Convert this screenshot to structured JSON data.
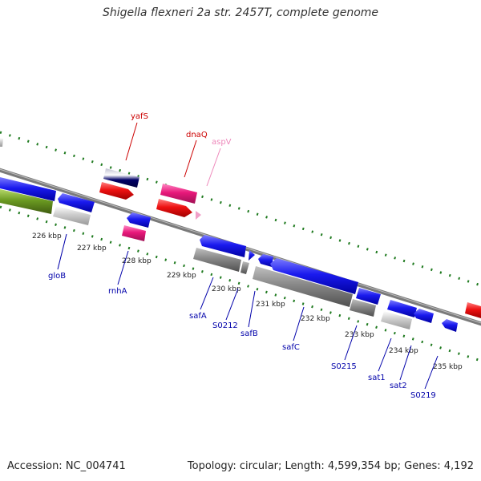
{
  "title": "Shigella flexneri 2a str. 2457T, complete genome",
  "footer": {
    "accession": "Accession: NC_004741",
    "info": "Topology: circular; Length: 4,599,354 bp; Genes: 4,192"
  },
  "colors": {
    "backbone": "#808080",
    "scale_dots": "#1f7a1f",
    "label_red": "#cc0000",
    "label_pink": "#ee88bb",
    "label_blue": "#0000aa",
    "gene_blue": "#1a1aee",
    "gene_red": "#ee1111",
    "gene_pink": "#e8187a",
    "gene_gray": "#888888",
    "gene_light": "#c8c8c8",
    "gene_navy": "#000066",
    "gene_green": "#6b9a22"
  },
  "scale": {
    "ticks": [
      "226 kbp",
      "227 kbp",
      "228 kbp",
      "229 kbp",
      "230 kbp",
      "231 kbp",
      "232 kbp",
      "233 kbp",
      "234 kbp",
      "235 kbp"
    ]
  },
  "genes": {
    "above": [
      {
        "name": "yafS",
        "color": "red"
      },
      {
        "name": "dnaQ",
        "color": "red"
      },
      {
        "name": "aspV",
        "color": "pink"
      }
    ],
    "below": [
      {
        "name": "gloB"
      },
      {
        "name": "rnhA"
      },
      {
        "name": "safA"
      },
      {
        "name": "S0212"
      },
      {
        "name": "safB"
      },
      {
        "name": "safC"
      },
      {
        "name": "S0215"
      },
      {
        "name": "sat1"
      },
      {
        "name": "sat2"
      },
      {
        "name": "S0219"
      }
    ]
  }
}
